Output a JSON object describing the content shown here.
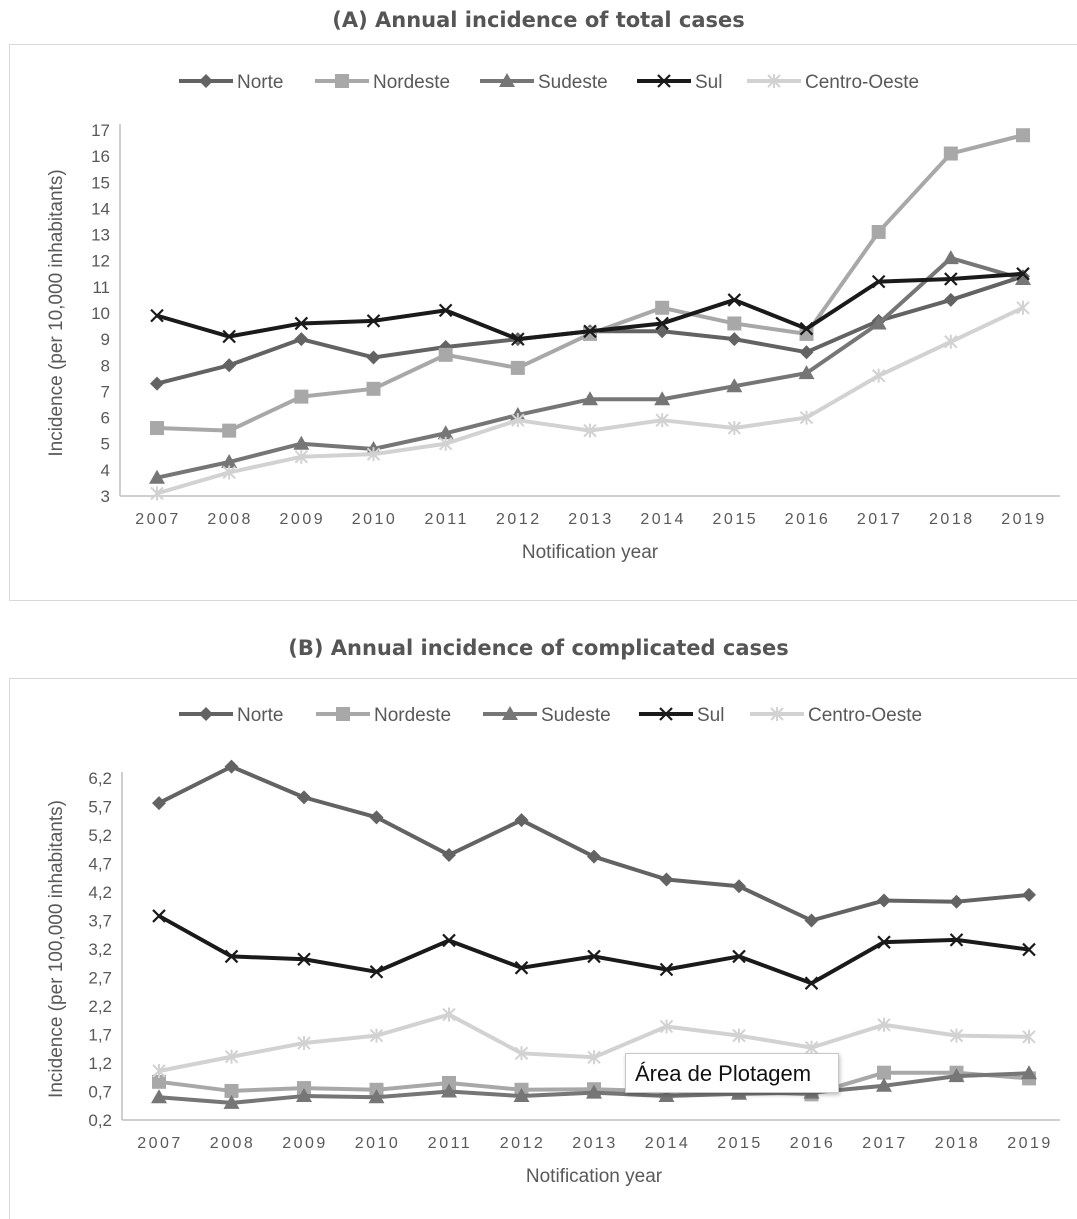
{
  "chart_data": [
    {
      "type": "line",
      "title": "(A) Annual incidence of total cases",
      "xlabel": "Notification year",
      "ylabel": "Incidence (per 10,000 inhabitants)",
      "ylim": [
        3,
        17
      ],
      "yticks": [
        "3",
        "4",
        "5",
        "6",
        "7",
        "8",
        "9",
        "10",
        "11",
        "12",
        "13",
        "14",
        "15",
        "16",
        "17"
      ],
      "categories": [
        "2007",
        "2008",
        "2009",
        "2010",
        "2011",
        "2012",
        "2013",
        "2014",
        "2015",
        "2016",
        "2017",
        "2018",
        "2019"
      ],
      "legend_position": "top",
      "grid": false,
      "series": [
        {
          "name": "Norte",
          "marker": "diamond",
          "color": "#636363",
          "values": [
            7.3,
            8.0,
            9.0,
            8.3,
            8.7,
            9.0,
            9.3,
            9.3,
            9.0,
            8.5,
            9.7,
            10.5,
            11.4
          ]
        },
        {
          "name": "Nordeste",
          "marker": "square",
          "color": "#a8a8a8",
          "values": [
            5.6,
            5.5,
            6.8,
            7.1,
            8.4,
            7.9,
            9.2,
            10.2,
            9.6,
            9.2,
            13.1,
            16.1,
            16.8
          ]
        },
        {
          "name": "Sudeste",
          "marker": "triangle",
          "color": "#767676",
          "values": [
            3.7,
            4.3,
            5.0,
            4.8,
            5.4,
            6.1,
            6.7,
            6.7,
            7.2,
            7.7,
            9.6,
            12.1,
            11.3
          ]
        },
        {
          "name": "Sul",
          "marker": "x",
          "color": "#1a1a1a",
          "values": [
            9.9,
            9.1,
            9.6,
            9.7,
            10.1,
            9.0,
            9.3,
            9.6,
            10.5,
            9.4,
            11.2,
            11.3,
            11.5
          ]
        },
        {
          "name": "Centro-Oeste",
          "marker": "star",
          "color": "#d2d2d2",
          "values": [
            3.1,
            3.9,
            4.5,
            4.6,
            5.0,
            5.9,
            5.5,
            5.9,
            5.6,
            6.0,
            7.6,
            8.9,
            10.2
          ]
        }
      ]
    },
    {
      "type": "line",
      "title": "(B) Annual incidence of complicated cases",
      "xlabel": "Notification year",
      "ylabel": "Incidence (per 100,000 inhabitants)",
      "ylim": [
        0.2,
        6.2
      ],
      "yticks": [
        "0,2",
        "0,7",
        "1,2",
        "1,7",
        "2,2",
        "2,7",
        "3,2",
        "3,7",
        "4,2",
        "4,7",
        "5,2",
        "5,7",
        "6,2"
      ],
      "categories": [
        "2007",
        "2008",
        "2009",
        "2010",
        "2011",
        "2012",
        "2013",
        "2014",
        "2015",
        "2016",
        "2017",
        "2018",
        "2019"
      ],
      "legend_position": "top",
      "grid": false,
      "series": [
        {
          "name": "Norte",
          "marker": "diamond",
          "color": "#636363",
          "values": [
            5.76,
            6.4,
            5.86,
            5.51,
            4.85,
            5.46,
            4.82,
            4.42,
            4.3,
            3.7,
            4.05,
            4.03,
            4.15
          ]
        },
        {
          "name": "Nordeste",
          "marker": "square",
          "color": "#a8a8a8",
          "values": [
            0.87,
            0.71,
            0.76,
            0.73,
            0.85,
            0.73,
            0.74,
            0.7,
            0.7,
            0.65,
            1.03,
            1.03,
            0.93
          ]
        },
        {
          "name": "Sudeste",
          "marker": "triangle",
          "color": "#767676",
          "values": [
            0.6,
            0.5,
            0.62,
            0.6,
            0.7,
            0.62,
            0.68,
            0.62,
            0.66,
            0.68,
            0.8,
            0.97,
            1.02
          ]
        },
        {
          "name": "Sul",
          "marker": "x",
          "color": "#1a1a1a",
          "values": [
            3.78,
            3.07,
            3.02,
            2.8,
            3.35,
            2.87,
            3.07,
            2.84,
            3.07,
            2.6,
            3.32,
            3.36,
            3.19
          ]
        },
        {
          "name": "Centro-Oeste",
          "marker": "star",
          "color": "#d2d2d2",
          "values": [
            1.06,
            1.31,
            1.55,
            1.68,
            2.05,
            1.37,
            1.3,
            1.84,
            1.68,
            1.47,
            1.87,
            1.68,
            1.66
          ]
        }
      ]
    }
  ],
  "tooltip": {
    "text": "Área de Plotagem"
  }
}
